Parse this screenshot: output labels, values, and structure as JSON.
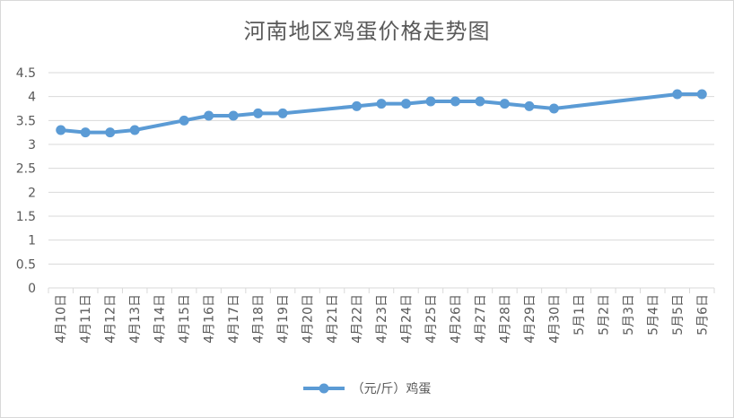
{
  "chart_data": {
    "type": "line",
    "title": "河南地区鸡蛋价格走势图",
    "xlabel": "",
    "ylabel": "",
    "ylim": [
      0,
      4.5
    ],
    "ytick_step": 0.5,
    "ytick_labels": [
      "0",
      "0.5",
      "1",
      "1.5",
      "2",
      "2.5",
      "3",
      "3.5",
      "4",
      "4.5"
    ],
    "grid": true,
    "legend_position": "bottom",
    "categories": [
      "4月10日",
      "4月11日",
      "4月12日",
      "4月13日",
      "4月14日",
      "4月15日",
      "4月16日",
      "4月17日",
      "4月18日",
      "4月19日",
      "4月20日",
      "4月21日",
      "4月22日",
      "4月23日",
      "4月24日",
      "4月25日",
      "4月26日",
      "4月27日",
      "4月28日",
      "4月29日",
      "4月30日",
      "5月1日",
      "5月2日",
      "5月3日",
      "5月4日",
      "5月5日",
      "5月6日"
    ],
    "series": [
      {
        "name": "（元/斤）鸡蛋",
        "color": "#5b9bd5",
        "values": [
          3.3,
          3.25,
          3.25,
          3.3,
          null,
          3.5,
          3.6,
          3.6,
          3.65,
          3.65,
          null,
          null,
          3.8,
          3.85,
          3.85,
          3.9,
          3.9,
          3.9,
          3.85,
          3.8,
          3.75,
          null,
          null,
          null,
          null,
          4.05,
          4.05
        ]
      }
    ]
  },
  "colors": {
    "line": "#5b9bd5",
    "grid": "#d9d9d9",
    "text": "#595959"
  }
}
